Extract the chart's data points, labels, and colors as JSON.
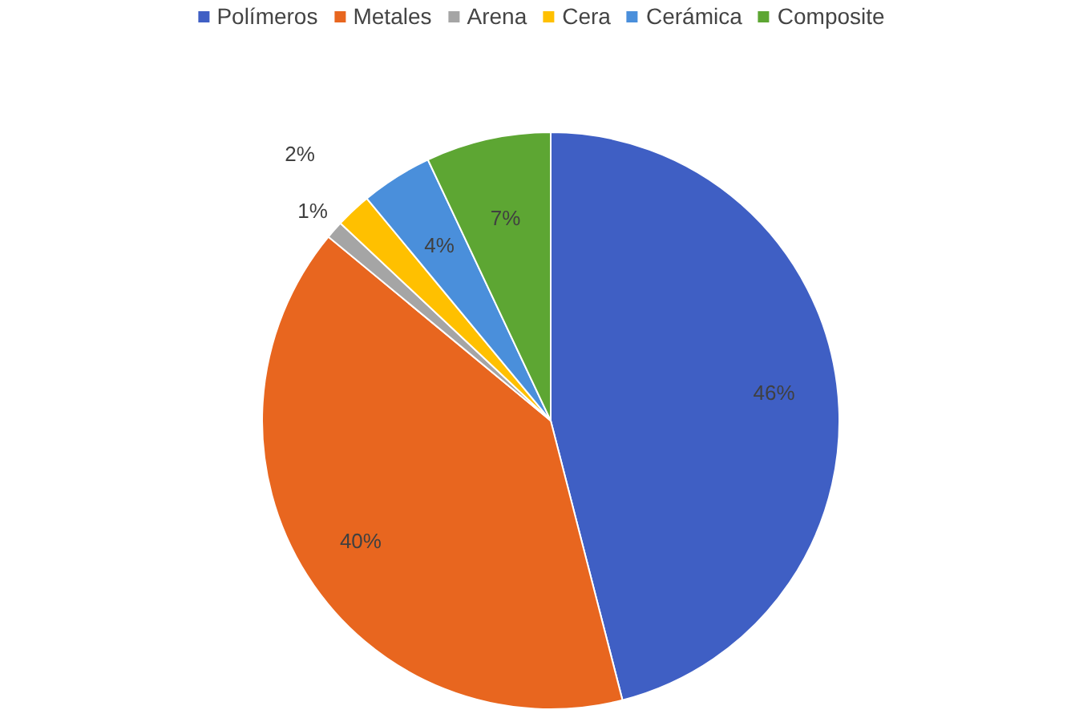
{
  "chart_data": {
    "type": "pie",
    "categories": [
      "Polímeros",
      "Metales",
      "Arena",
      "Cera",
      "Cerámica",
      "Composite"
    ],
    "values": [
      46,
      40,
      1,
      2,
      4,
      7
    ],
    "colors": [
      "#3f5fc4",
      "#e8661f",
      "#a5a5a5",
      "#ffc000",
      "#4a8fdb",
      "#5da633"
    ],
    "value_labels": [
      "46%",
      "40%",
      "1%",
      "2%",
      "4%",
      "7%"
    ],
    "legend": "top"
  }
}
